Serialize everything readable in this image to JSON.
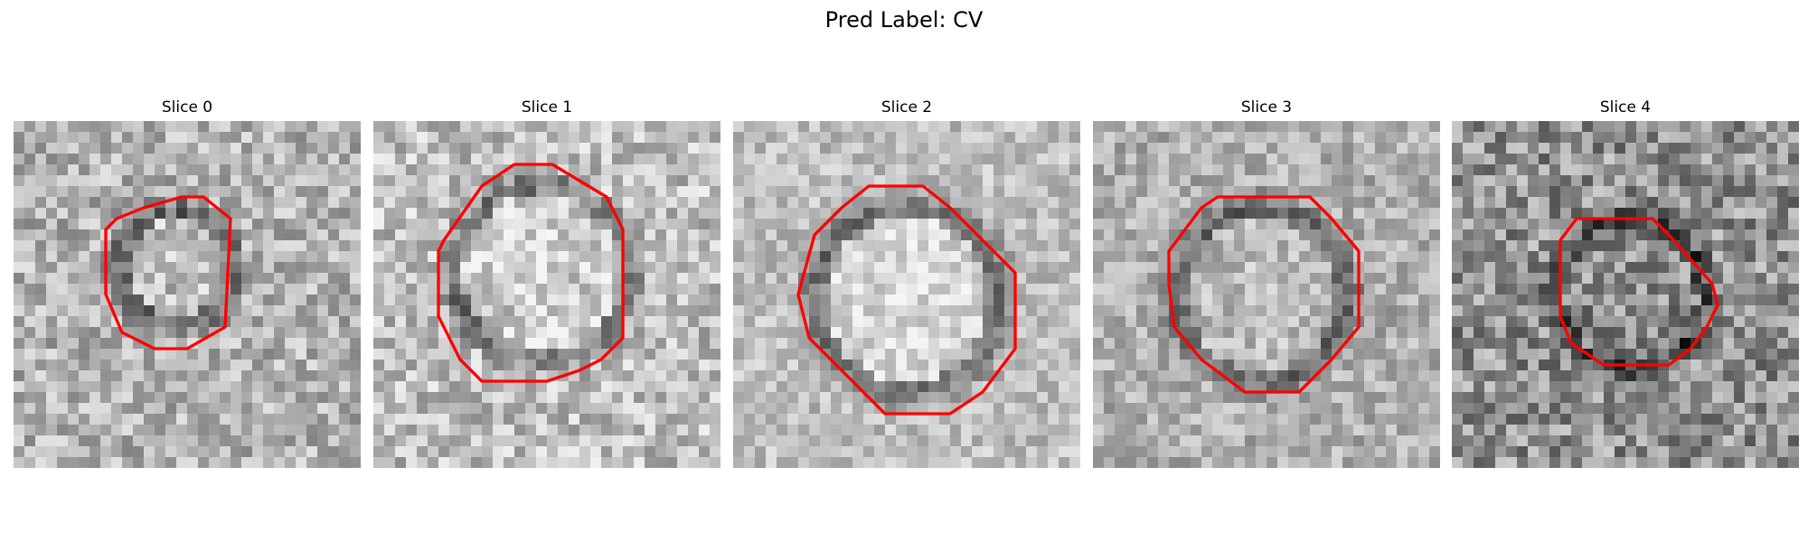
{
  "figure": {
    "suptitle": "Pred Label: CV"
  },
  "panels": [
    {
      "title": "Slice 0",
      "contour_color": "#ff0000"
    },
    {
      "title": "Slice 1",
      "contour_color": "#ff0000"
    },
    {
      "title": "Slice 2",
      "contour_color": "#ff0000"
    },
    {
      "title": "Slice 3",
      "contour_color": "#ff0000"
    },
    {
      "title": "Slice 4",
      "contour_color": "#ff0000"
    }
  ]
}
